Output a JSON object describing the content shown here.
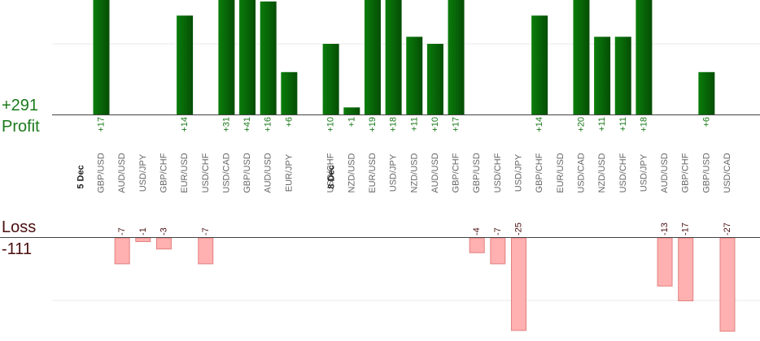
{
  "summary": {
    "profit_total": "+291",
    "profit_label": "Profit",
    "loss_label": "Loss",
    "loss_total": "-111"
  },
  "colors": {
    "profit_bar": "#0f6a0f",
    "profit_text": "#1a7a1a",
    "loss_bar": "#ffb0b0",
    "loss_border": "#e08080",
    "axis": "#444444",
    "grid": "#e8e8e8",
    "category_text": "#666666",
    "loss_text": "#4a0f0f"
  },
  "chart_data": {
    "type": "bar",
    "profit_axis_range": [
      0,
      27
    ],
    "loss_axis_range": [
      0,
      27
    ],
    "date_labels": [
      {
        "label": "5 Dec",
        "before_index": 0
      },
      {
        "label": "8 Dec",
        "before_index": 11
      }
    ],
    "categories": [
      "GBP/USD",
      "AUD/USD",
      "USD/JPY",
      "GBP/CHF",
      "EUR/USD",
      "USD/CHF",
      "USD/CAD",
      "GBP/USD",
      "AUD/USD",
      "EUR/JPY",
      "USD/CHF",
      "NZD/USD",
      "EUR/USD",
      "USD/JPY",
      "NZD/USD",
      "AUD/USD",
      "GBP/CHF",
      "GBP/USD",
      "USD/CHF",
      "USD/JPY",
      "GBP/CHF",
      "EUR/USD",
      "USD/CAD",
      "NZD/USD",
      "USD/CHF",
      "USD/JPY",
      "AUD/USD",
      "GBP/CHF",
      "GBP/USD",
      "USD/CAD"
    ],
    "values": [
      17,
      -7,
      -1,
      -3,
      14,
      -7,
      31,
      41,
      16,
      6,
      10,
      1,
      19,
      18,
      11,
      10,
      17,
      -4,
      -7,
      -25,
      14,
      null,
      20,
      11,
      11,
      18,
      -13,
      -17,
      6,
      -27
    ],
    "value_labels": [
      "+17",
      "-7",
      "-1",
      "-3",
      "+14",
      "-7",
      "+31",
      "+41",
      "+16",
      "+6",
      "+10",
      "+1",
      "+19",
      "+18",
      "+11",
      "+10",
      "+17",
      "-4",
      "-7",
      "-25",
      "+14",
      "",
      "+20",
      "+11",
      "+11",
      "+18",
      "-13",
      "-17",
      "+6",
      "-27"
    ]
  }
}
